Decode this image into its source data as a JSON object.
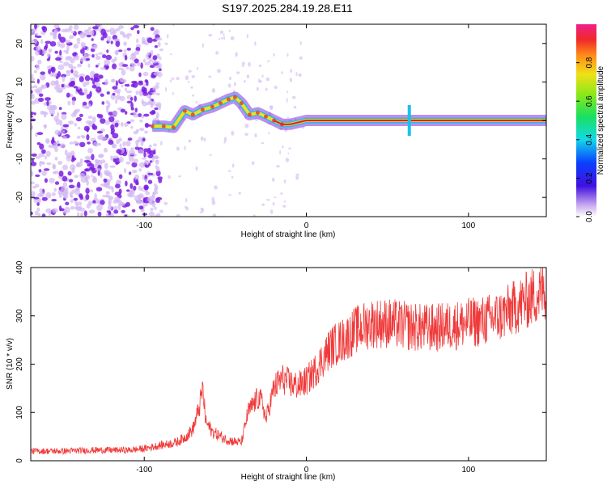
{
  "title": "S197.2025.284.19.28.E11",
  "colors": {
    "snr_line": "#f03a3a",
    "scatter_main": "#7a1fe0",
    "scatter_faint": "#d2b8f2",
    "ridge_core": "#e0203a",
    "ridge_mid": "#f0e020",
    "ridge_edge": "#1ec0e8"
  },
  "chart_data": [
    {
      "id": "spectrogram",
      "type": "heatmap",
      "title": "",
      "xlabel": "Height of straight line (km)",
      "ylabel": "Frequency (Hz)",
      "xlim": [
        -170,
        148
      ],
      "ylim": [
        -25,
        25
      ],
      "x_ticks": [
        "-100",
        "0",
        "100"
      ],
      "x_tick_values": [
        -100,
        0,
        100
      ],
      "y_ticks": [
        "-20",
        "-10",
        "0",
        "10",
        "20"
      ],
      "y_tick_values": [
        -20,
        -10,
        0,
        10,
        20
      ],
      "ridge": {
        "x": [
          -95,
          -88,
          -82,
          -75,
          -70,
          -64,
          -58,
          -53,
          -48,
          -44,
          -40,
          -35,
          -30,
          -25,
          -20,
          -15,
          -10,
          -5,
          0,
          10,
          30,
          60,
          65,
          80,
          100,
          120,
          148
        ],
        "y": [
          -1.5,
          -1.5,
          -1.8,
          2.5,
          1.5,
          2.8,
          3.5,
          4.5,
          5.5,
          6.0,
          4.5,
          1.5,
          2.0,
          1.0,
          0.0,
          -1.0,
          -1.0,
          -0.5,
          0,
          0,
          0,
          0,
          0,
          0,
          0,
          0,
          0
        ]
      },
      "colorbar": {
        "label": "Normalized spectral amplitude",
        "ticks": [
          "0.0",
          "0.2",
          "0.4",
          "0.6",
          "0.8"
        ],
        "tick_values": [
          0.0,
          0.2,
          0.4,
          0.6,
          0.8
        ],
        "range": [
          0,
          1
        ]
      }
    },
    {
      "id": "snr",
      "type": "line",
      "title": "",
      "xlabel": "Height of straight line (km)",
      "ylabel": "SNR (10 * v/v)",
      "xlim": [
        -170,
        148
      ],
      "ylim": [
        0,
        400
      ],
      "x_ticks": [
        "-100",
        "0",
        "100"
      ],
      "x_tick_values": [
        -100,
        0,
        100
      ],
      "y_ticks": [
        "0",
        "100",
        "200",
        "300",
        "400"
      ],
      "y_tick_values": [
        0,
        100,
        200,
        300,
        400
      ],
      "series": [
        {
          "name": "SNR",
          "x": [
            -170,
            -150,
            -130,
            -110,
            -100,
            -90,
            -80,
            -75,
            -70,
            -66,
            -64,
            -62,
            -58,
            -50,
            -45,
            -40,
            -36,
            -30,
            -27,
            -25,
            -20,
            -15,
            -10,
            -5,
            0,
            5,
            10,
            15,
            20,
            25,
            30,
            40,
            50,
            60,
            70,
            80,
            90,
            100,
            110,
            120,
            130,
            140,
            148
          ],
          "y": [
            20,
            20,
            22,
            22,
            25,
            32,
            38,
            48,
            65,
            110,
            150,
            80,
            60,
            45,
            40,
            38,
            100,
            130,
            120,
            85,
            150,
            170,
            160,
            155,
            165,
            185,
            210,
            235,
            245,
            255,
            270,
            285,
            285,
            280,
            275,
            275,
            280,
            285,
            290,
            300,
            320,
            340,
            355
          ]
        }
      ]
    }
  ]
}
